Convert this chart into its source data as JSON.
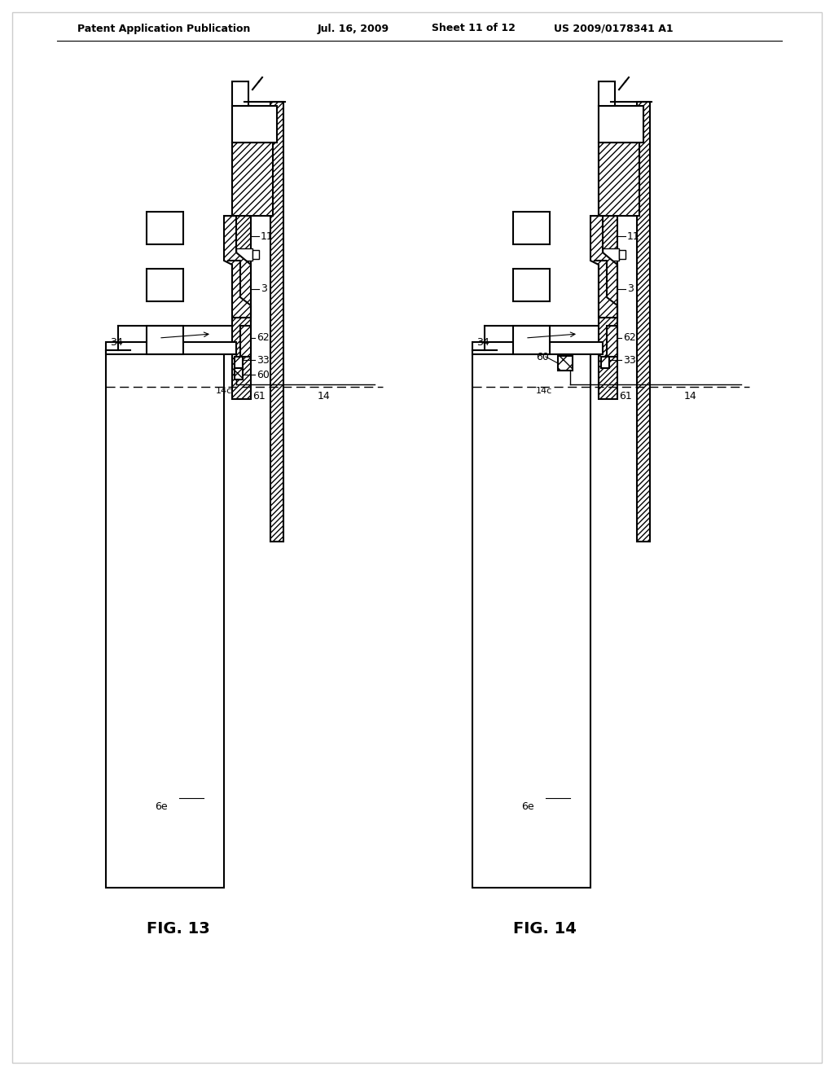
{
  "background_color": "#ffffff",
  "header_text": "Patent Application Publication",
  "header_date": "Jul. 16, 2009",
  "header_sheet": "Sheet 11 of 12",
  "header_patent": "US 2009/0178341 A1",
  "fig13_label": "FIG. 13",
  "fig14_label": "FIG. 14",
  "text_color": "#000000",
  "line_color": "#000000",
  "hatch_color": "#000000"
}
